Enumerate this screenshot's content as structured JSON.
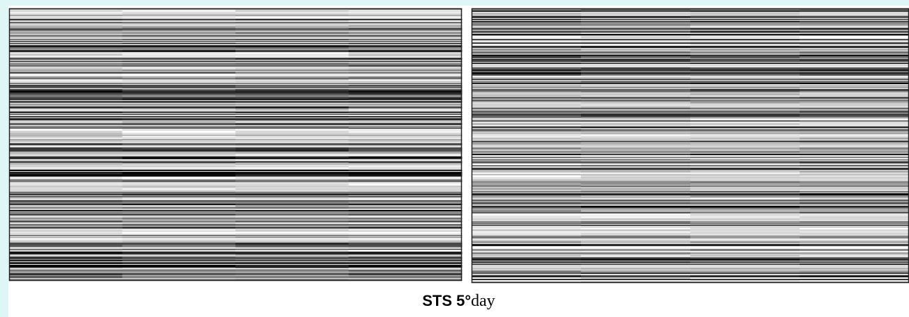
{
  "caption": {
    "bold": "STS 5°",
    "serif": "day"
  }
}
